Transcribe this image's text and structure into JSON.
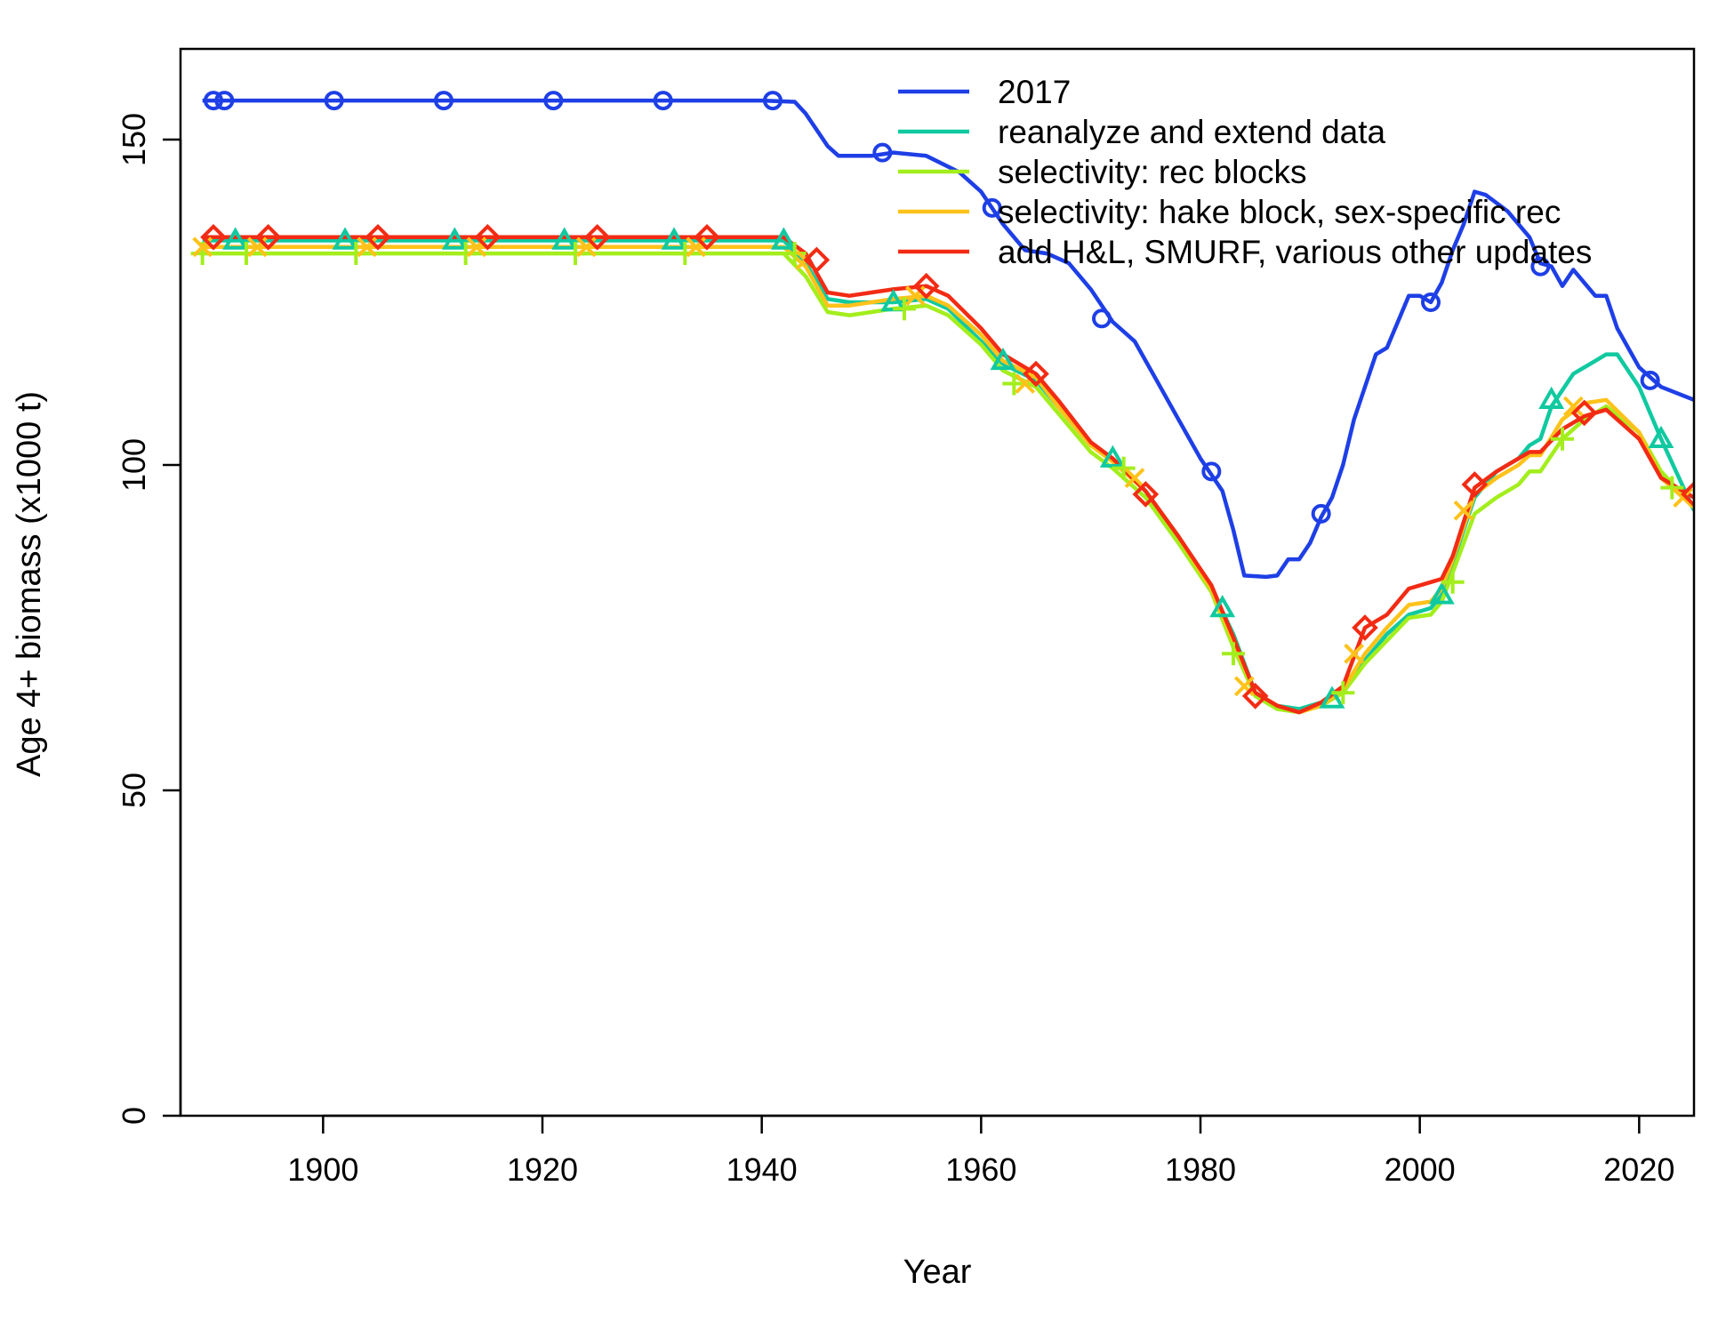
{
  "chart_data": {
    "type": "line",
    "title": "",
    "xlabel": "Year",
    "ylabel": "Age 4+ biomass (x1000 t)",
    "xlim": [
      1887,
      2025
    ],
    "ylim": [
      0,
      160
    ],
    "x_ticks": [
      "1900",
      "1920",
      "1940",
      "1960",
      "1980",
      "2000",
      "2020"
    ],
    "y_ticks": [
      "0",
      "50",
      "100",
      "150"
    ],
    "grid": false,
    "legend_position": "top-right",
    "series": [
      {
        "name": "2017",
        "color": "#1e3fe6",
        "marker": "circle",
        "x": [
          1889,
          1900,
          1940,
          1943,
          1944,
          1946,
          1947,
          1950,
          1952,
          1955,
          1958,
          1960,
          1962,
          1964,
          1966,
          1968,
          1970,
          1972,
          1974,
          1976,
          1978,
          1980,
          1982,
          1983,
          1984,
          1986,
          1987,
          1988,
          1989,
          1990,
          1991,
          1992,
          1993,
          1994,
          1995,
          1996,
          1997,
          1998,
          1999,
          2000,
          2001,
          2002,
          2003,
          2004,
          2005,
          2006,
          2008,
          2010,
          2011,
          2012,
          2013,
          2014,
          2016,
          2017,
          2018,
          2020,
          2022,
          2025
        ],
        "values": [
          156,
          156,
          156,
          155.8,
          154,
          149,
          147.5,
          147.5,
          148,
          147.5,
          145,
          142,
          137,
          133,
          132.5,
          131,
          127,
          122,
          119,
          113,
          107,
          101,
          96,
          90,
          83,
          82.8,
          83,
          85.5,
          85.5,
          88,
          92,
          95,
          100,
          107,
          112,
          117,
          118,
          122,
          126,
          126,
          125,
          128,
          133,
          137,
          142,
          141.5,
          139,
          135,
          131,
          130.5,
          127.5,
          130,
          126,
          126,
          121,
          115,
          112,
          110
        ],
        "marker_x": [
          1890,
          1891,
          1901,
          1911,
          1921,
          1931,
          1941,
          1951,
          1961,
          1971,
          1981,
          1991,
          2001,
          2011,
          2021
        ],
        "marker_values": [
          156,
          156,
          156,
          156,
          156,
          156,
          156,
          148,
          139.5,
          122.5,
          99,
          92.5,
          125,
          130.5,
          113
        ]
      },
      {
        "name": "reanalyze and extend data",
        "color": "#10c9a0",
        "marker": "triangle",
        "x": [
          1889,
          1940,
          1942,
          1944,
          1946,
          1948,
          1950,
          1952,
          1955,
          1957,
          1960,
          1962,
          1965,
          1967,
          1970,
          1972,
          1975,
          1978,
          1981,
          1983,
          1985,
          1987,
          1989,
          1991,
          1993,
          1995,
          1997,
          1999,
          2001,
          2002,
          2003,
          2005,
          2007,
          2009,
          2010,
          2011,
          2012,
          2014,
          2016,
          2017,
          2018,
          2020,
          2022,
          2025
        ],
        "values": [
          134.5,
          134.5,
          134.5,
          131,
          125.5,
          125,
          125,
          125,
          125.5,
          124,
          119,
          115.5,
          113,
          109,
          103,
          101,
          96,
          89,
          81,
          74,
          65,
          63,
          62.5,
          63.5,
          65.5,
          70,
          74,
          77,
          78,
          80,
          85,
          95,
          99,
          101,
          103,
          104,
          109,
          114,
          116,
          117,
          117,
          112,
          104,
          93
        ],
        "marker_x": [
          1892,
          1902,
          1912,
          1922,
          1932,
          1942,
          1952,
          1962,
          1972,
          1982,
          1992,
          2002,
          2012,
          2022
        ],
        "marker_values": [
          134.5,
          134.5,
          134.5,
          134.5,
          134.5,
          134.5,
          125,
          116,
          101,
          78,
          64,
          80,
          110,
          104
        ]
      },
      {
        "name": "selectivity: rec blocks",
        "color": "#a3ee1c",
        "marker": "plus",
        "x": [
          1889,
          1940,
          1942,
          1944,
          1946,
          1948,
          1950,
          1952,
          1955,
          1957,
          1960,
          1962,
          1965,
          1967,
          1970,
          1972,
          1975,
          1978,
          1981,
          1983,
          1985,
          1987,
          1989,
          1991,
          1993,
          1995,
          1997,
          1999,
          2001,
          2002,
          2003,
          2005,
          2007,
          2009,
          2010,
          2011,
          2013,
          2015,
          2017,
          2020,
          2022,
          2025
        ],
        "values": [
          132.5,
          132.5,
          132.5,
          129,
          123.5,
          123,
          123.5,
          124,
          124.5,
          123,
          118.5,
          114.5,
          112,
          108,
          102,
          99.5,
          95,
          88,
          80.5,
          72,
          64.5,
          62.5,
          62,
          63,
          65,
          69.5,
          73,
          76.5,
          77,
          79,
          83.5,
          92.5,
          95,
          97,
          99,
          99,
          104,
          107,
          109,
          105,
          99,
          93.5
        ],
        "marker_x": [
          1889,
          1893,
          1903,
          1913,
          1923,
          1933,
          1943,
          1953,
          1963,
          1973,
          1983,
          1993,
          2003,
          2013,
          2023
        ],
        "marker_values": [
          132.5,
          132.5,
          132.5,
          132.5,
          132.5,
          132.5,
          132.5,
          124,
          112.5,
          99.5,
          71,
          65,
          82,
          104,
          96.5
        ]
      },
      {
        "name": "selectivity: hake block, sex-specific rec",
        "color": "#ffc21a",
        "marker": "x",
        "x": [
          1889,
          1940,
          1942,
          1944,
          1946,
          1948,
          1950,
          1952,
          1955,
          1957,
          1960,
          1962,
          1965,
          1967,
          1970,
          1972,
          1975,
          1978,
          1981,
          1983,
          1985,
          1987,
          1989,
          1991,
          1993,
          1995,
          1997,
          1999,
          2001,
          2002,
          2003,
          2005,
          2007,
          2009,
          2010,
          2011,
          2013,
          2015,
          2017,
          2020,
          2022,
          2025
        ],
        "values": [
          133.5,
          133.5,
          133.5,
          130.5,
          124.5,
          124.5,
          125,
          125.5,
          126,
          124.5,
          120,
          116,
          113.5,
          109,
          103,
          100.5,
          96,
          89,
          81,
          73,
          65,
          63,
          62,
          63,
          65.5,
          71,
          75,
          78.5,
          79,
          81,
          85.5,
          95.5,
          98,
          100,
          101.5,
          101.5,
          107,
          109.5,
          110,
          105,
          98,
          93.5
        ],
        "marker_x": [
          1889,
          1894,
          1904,
          1914,
          1924,
          1934,
          1944,
          1954,
          1964,
          1974,
          1984,
          1994,
          2004,
          2014,
          2024
        ],
        "marker_values": [
          133.5,
          133.5,
          133.5,
          133.5,
          133.5,
          133.5,
          131.5,
          126,
          112.5,
          98,
          66,
          71,
          93,
          109,
          95
        ]
      },
      {
        "name": "add H&L, SMURF, various other updates",
        "color": "#f22b14",
        "marker": "diamond",
        "x": [
          1889,
          1940,
          1942,
          1944,
          1946,
          1948,
          1950,
          1952,
          1955,
          1957,
          1960,
          1962,
          1965,
          1967,
          1970,
          1972,
          1975,
          1978,
          1981,
          1983,
          1985,
          1987,
          1989,
          1991,
          1993,
          1995,
          1997,
          1999,
          2001,
          2002,
          2003,
          2005,
          2007,
          2009,
          2010,
          2011,
          2013,
          2015,
          2017,
          2020,
          2022,
          2025
        ],
        "values": [
          135,
          135,
          135,
          132.5,
          126.5,
          126,
          126.5,
          127,
          127.5,
          126,
          121,
          117,
          114,
          110,
          103.5,
          101,
          96,
          89,
          81.5,
          73.5,
          65,
          63,
          62,
          63.5,
          66,
          75,
          77,
          81,
          82,
          82.5,
          86,
          96.5,
          99,
          101,
          102,
          102,
          105.5,
          107.5,
          108.5,
          104,
          98,
          95
        ],
        "marker_x": [
          1890,
          1895,
          1905,
          1915,
          1925,
          1935,
          1945,
          1955,
          1965,
          1975,
          1985,
          1995,
          2005,
          2015,
          2025
        ],
        "marker_values": [
          135,
          135,
          135,
          135,
          135,
          135,
          131.5,
          127.5,
          114,
          95.5,
          64.5,
          75,
          97,
          108,
          95.5
        ]
      }
    ]
  }
}
